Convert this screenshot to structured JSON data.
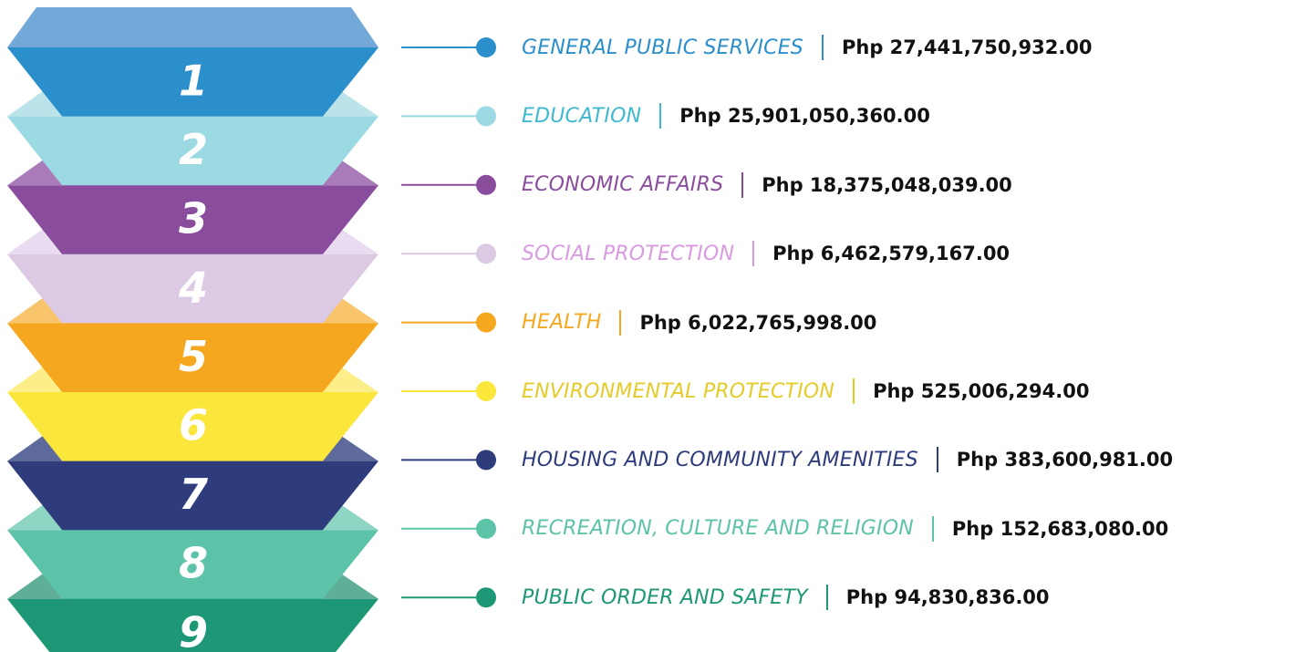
{
  "items": [
    {
      "number": "1",
      "label": "GENERAL PUBLIC SERVICES",
      "amount": "Php 27,441,750,932.00"
    },
    {
      "number": "2",
      "label": "EDUCATION",
      "amount": "Php 25,901,050,360.00"
    },
    {
      "number": "3",
      "label": "ECONOMIC AFFAIRS",
      "amount": "Php 18,375,048,039.00"
    },
    {
      "number": "4",
      "label": "SOCIAL PROTECTION",
      "amount": "Php 6,462,579,167.00"
    },
    {
      "number": "5",
      "label": "HEALTH",
      "amount": "Php 6,022,765,998.00"
    },
    {
      "number": "6",
      "label": "ENVIRONMENTAL PROTECTION",
      "amount": "Php 525,006,294.00"
    },
    {
      "number": "7",
      "label": "HOUSING AND COMMUNITY AMENITIES",
      "amount": "Php 383,600,981.00"
    },
    {
      "number": "8",
      "label": "RECREATION, CULTURE AND RELIGION",
      "amount": "Php 152,683,080.00"
    },
    {
      "number": "9",
      "label": "PUBLIC ORDER AND SAFETY",
      "amount": "Php 94,830,836.00"
    }
  ]
}
